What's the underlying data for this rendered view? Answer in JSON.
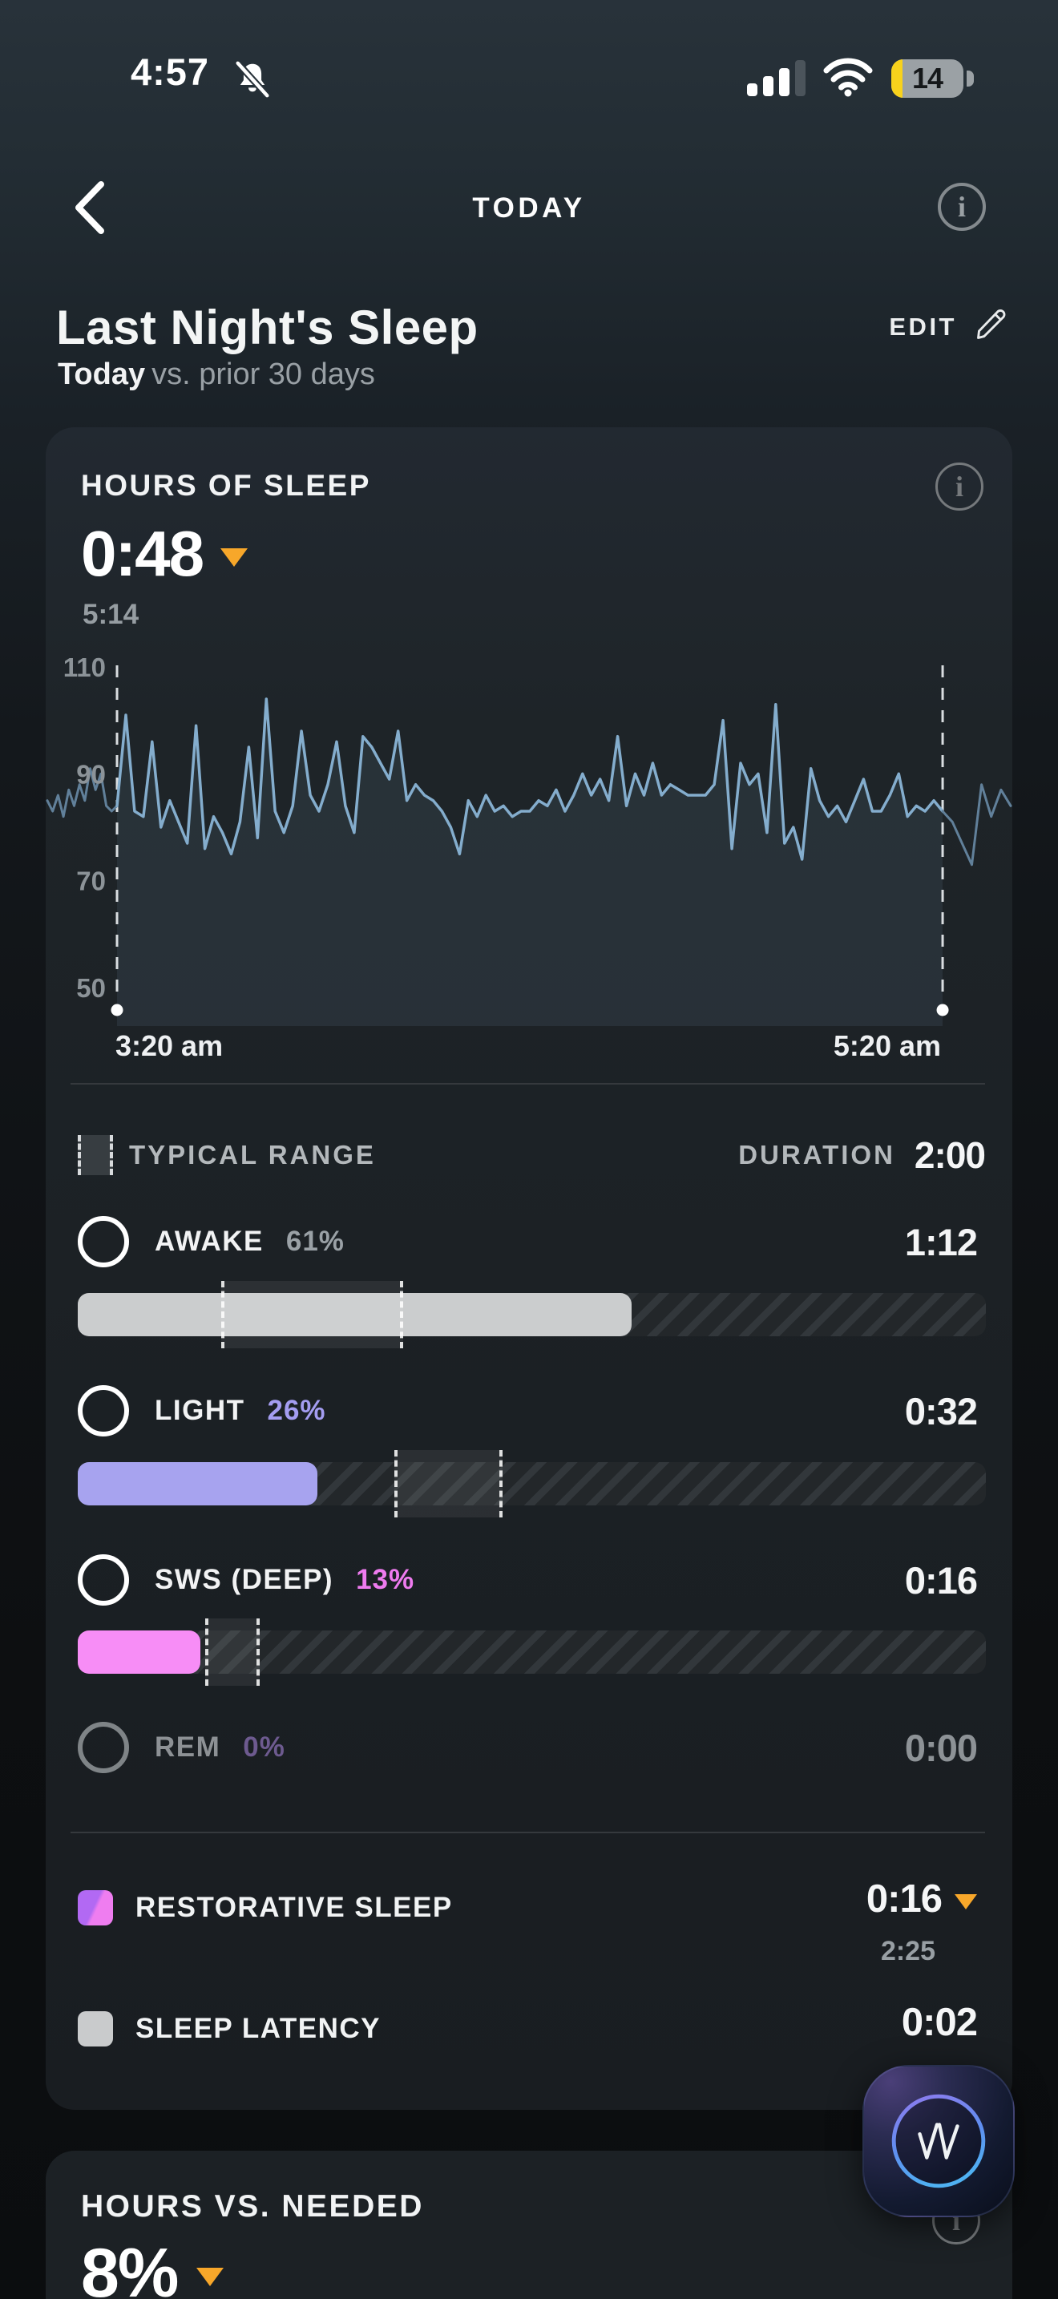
{
  "status_bar": {
    "time": "4:57",
    "bell_icon": "bell-muted",
    "signal_icon": "cellular-3-of-4",
    "wifi_icon": "wifi-full",
    "battery_level": "14"
  },
  "nav": {
    "title": "TODAY"
  },
  "header": {
    "title": "Last Night's Sleep",
    "edit_label": "EDIT",
    "subtitle_emphasis": "Today",
    "subtitle_rest": "vs. prior 30 days"
  },
  "sleep_card": {
    "title": "HOURS OF SLEEP",
    "value": "0:48",
    "trend": "down",
    "comparison_value": "5:14"
  },
  "chart_data": {
    "type": "line",
    "title": "",
    "yticks": [
      110,
      90,
      70,
      50
    ],
    "ylim": [
      50,
      110
    ],
    "grid": false,
    "legend_position": "none",
    "x_markers": [
      {
        "label": "3:20 am",
        "x": 0.0738
      },
      {
        "label": "5:20 am",
        "x": 0.9279
      }
    ],
    "series": [
      {
        "name": "segment-before-sleep",
        "values": [
          85,
          83,
          86,
          82,
          87,
          84,
          88,
          85,
          91,
          87,
          90,
          84,
          83,
          84
        ]
      },
      {
        "name": "segment-during-sleep",
        "values": [
          84,
          101,
          83,
          82,
          96,
          80,
          85,
          81,
          77,
          99,
          76,
          82,
          79,
          75,
          81,
          95,
          78,
          104,
          83,
          79,
          84,
          98,
          86,
          83,
          88,
          96,
          84,
          79,
          97,
          95,
          92,
          89,
          98,
          85,
          88,
          86,
          85,
          83,
          80,
          75,
          85,
          82,
          86,
          83,
          84,
          82,
          83,
          83,
          85,
          84,
          87,
          83,
          86,
          90,
          86,
          89,
          85,
          97,
          84,
          90,
          86,
          92,
          86,
          88,
          87,
          86,
          86,
          86,
          88,
          100,
          76,
          92,
          88,
          90,
          79,
          103,
          77,
          80,
          74,
          91,
          85,
          82,
          84,
          81,
          85,
          89,
          83,
          83,
          86,
          90,
          82,
          84,
          83,
          85,
          83
        ]
      },
      {
        "name": "segment-after-sleep",
        "values": [
          83,
          81,
          77,
          73,
          88,
          82,
          87,
          84
        ]
      }
    ],
    "line_color": "#84adcd",
    "dim_line_color": "#61809a",
    "marker_color": "#ffffff",
    "area_fill": "rgba(133,173,205,0.10)"
  },
  "stages": {
    "legend_label": "TYPICAL RANGE",
    "duration_label": "DURATION",
    "duration_value": "2:00",
    "rows": [
      {
        "name": "AWAKE",
        "pct": "61%",
        "value": "1:12",
        "fill": 0.61,
        "range": [
          0.158,
          0.358
        ],
        "color": "#cbcdce",
        "pct_color": "#9aa1a6"
      },
      {
        "name": "LIGHT",
        "pct": "26%",
        "value": "0:32",
        "fill": 0.264,
        "range": [
          0.349,
          0.468
        ],
        "color": "#a7a3ef",
        "pct_color": "#a49df1"
      },
      {
        "name": "SWS (DEEP)",
        "pct": "13%",
        "value": "0:16",
        "fill": 0.135,
        "range": [
          0.14,
          0.2
        ],
        "color": "#f78df6",
        "pct_color": "#ee7bef"
      },
      {
        "name": "REM",
        "pct": "0%",
        "value": "0:00",
        "fill": 0,
        "range": null,
        "color": null,
        "pct_color": "#6d5a8f"
      }
    ],
    "extras": [
      {
        "label": "RESTORATIVE SLEEP",
        "value": "0:16",
        "trend": "down",
        "comparison_value": "2:25"
      },
      {
        "label": "SLEEP LATENCY",
        "value": "0:02"
      }
    ]
  },
  "needed_card": {
    "title": "HOURS VS. NEEDED",
    "value": "8%",
    "trend": "down"
  },
  "fab": {
    "logo": "whoop"
  },
  "colors": {
    "accent_orange": "#f7a72a",
    "light_purple": "#a7a3ef",
    "deep_pink": "#f78df6",
    "line_blue": "#84adcd"
  }
}
